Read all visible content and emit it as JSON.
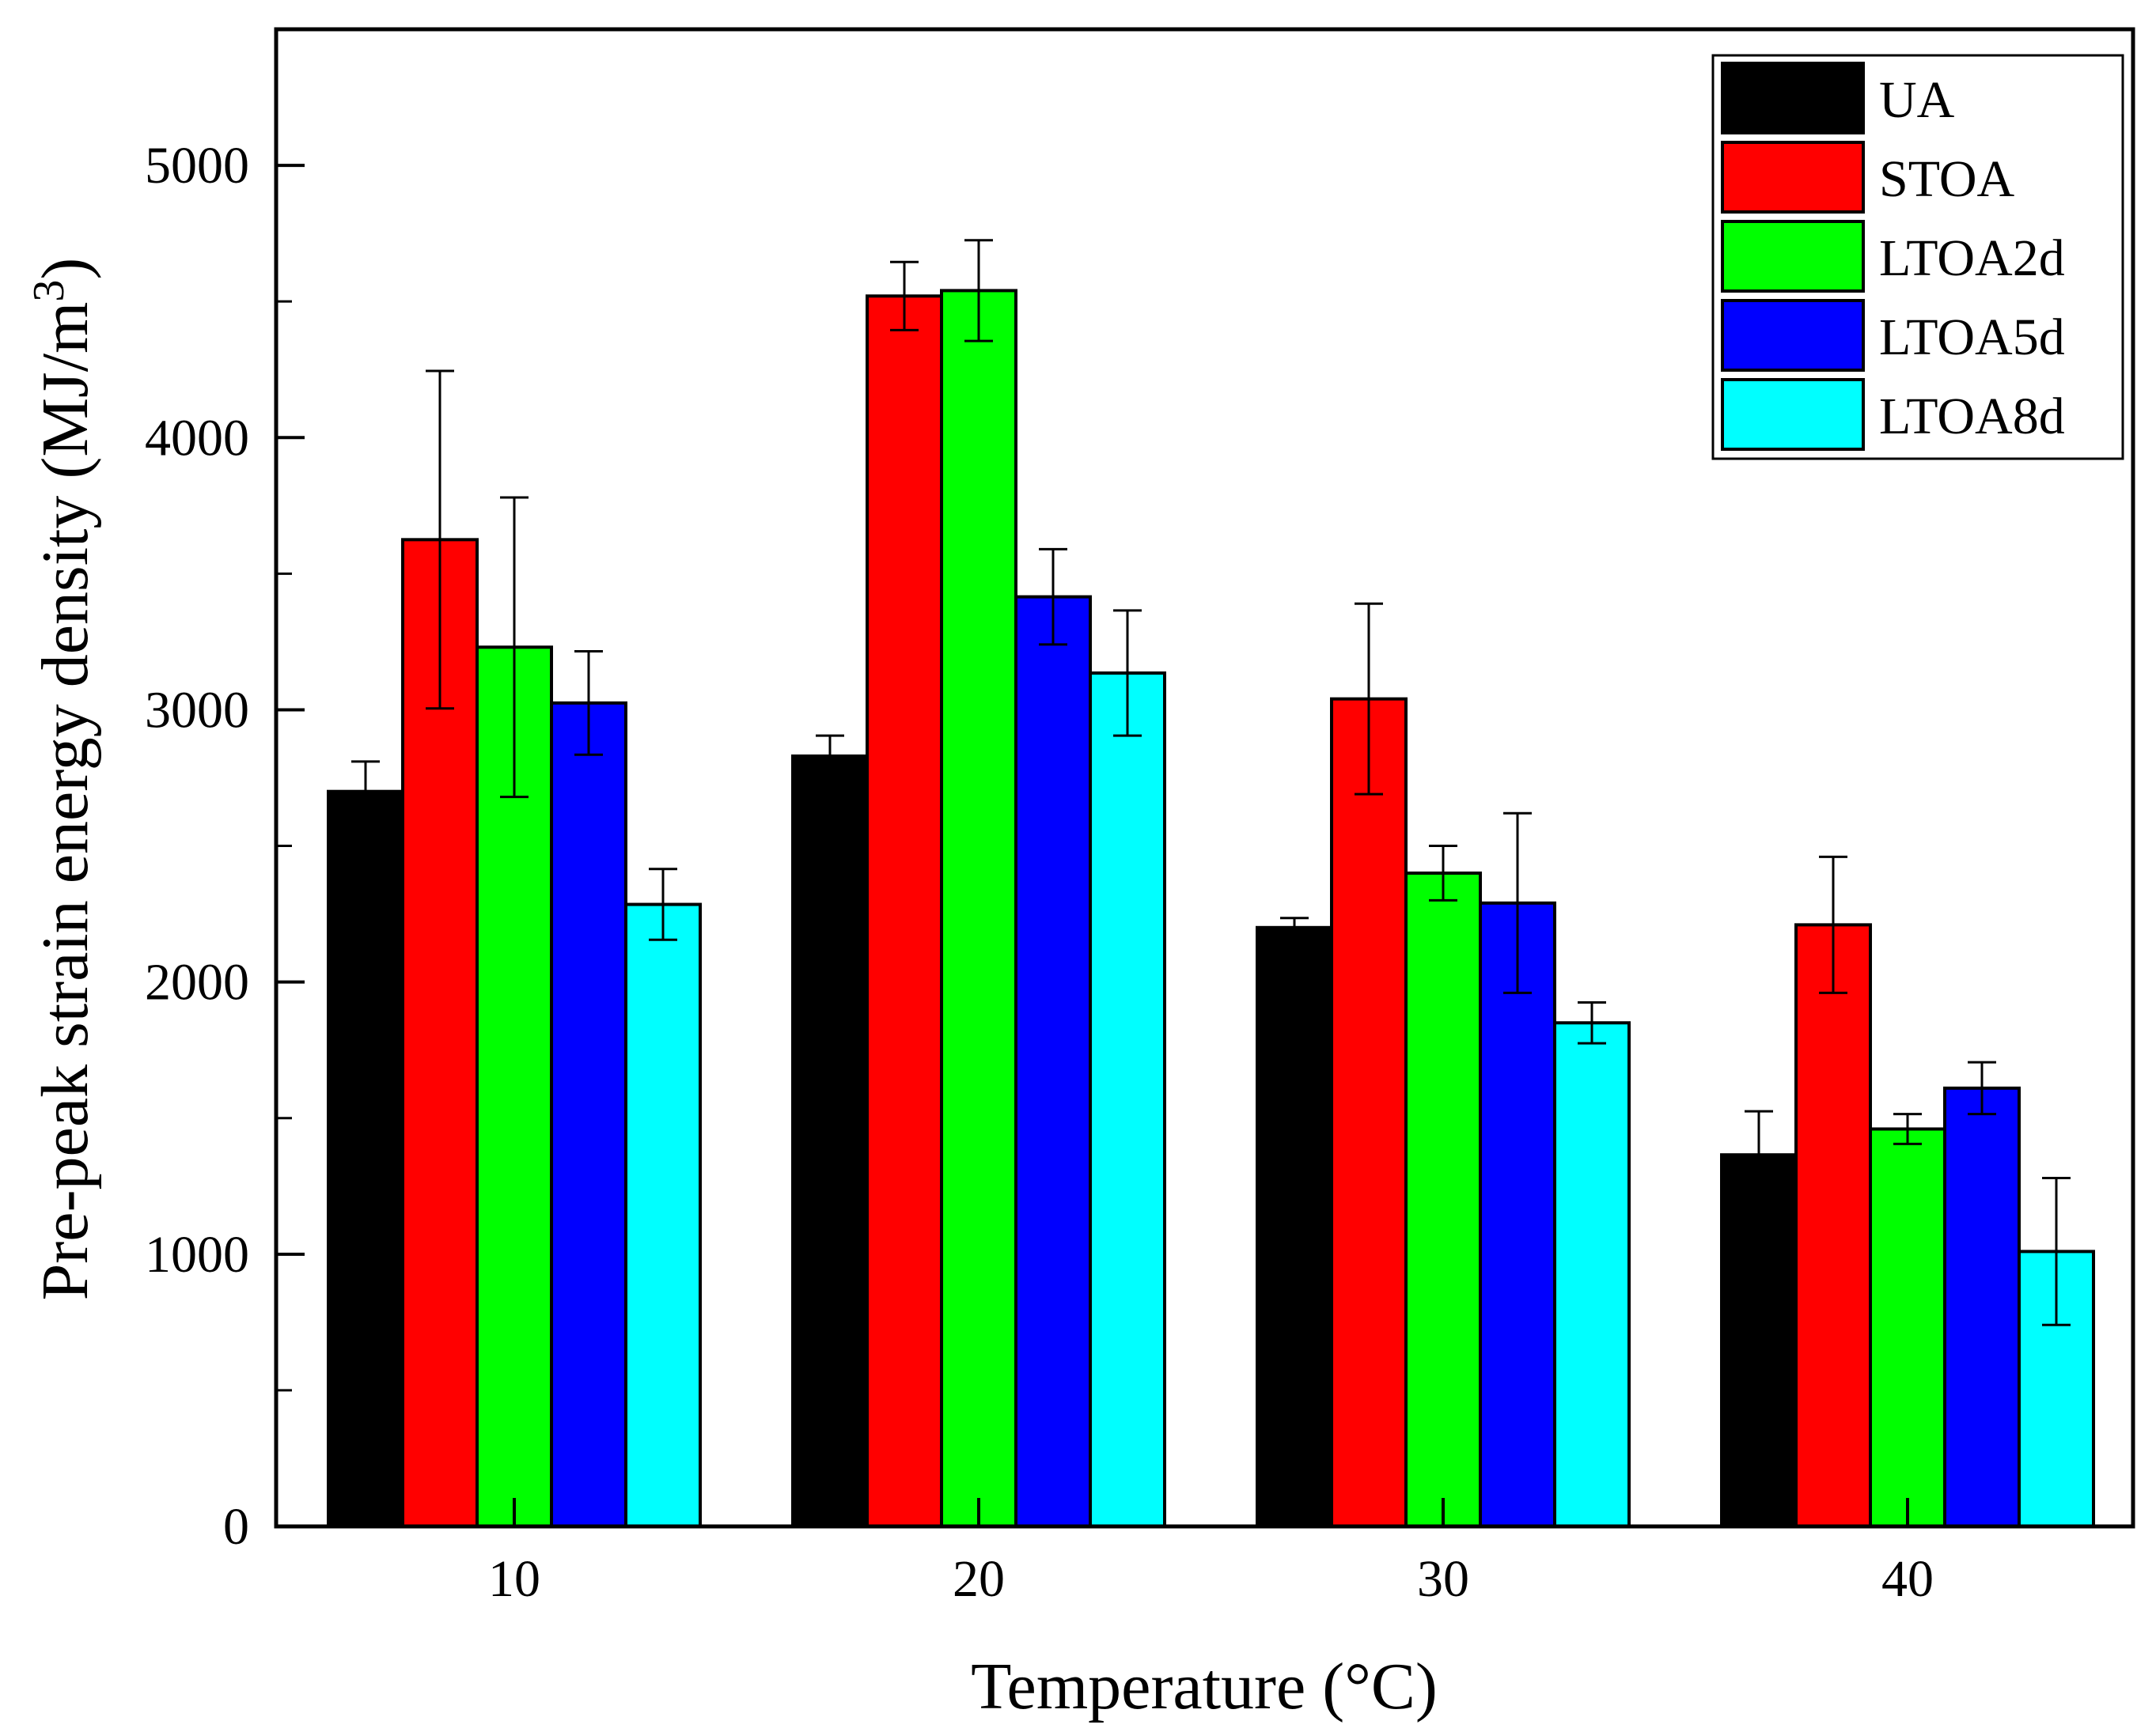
{
  "chart_data": {
    "type": "bar",
    "title": "",
    "xlabel": "Temperature (°C)",
    "ylabel": "Pre-peak strain energy density (MJ/m",
    "ylabel_sup": "3",
    "ylabel_close": ")",
    "categories": [
      "10",
      "20",
      "30",
      "40"
    ],
    "ylim": [
      0,
      5500
    ],
    "yticks": [
      0,
      1000,
      2000,
      3000,
      4000,
      5000
    ],
    "legend_position": "top-right",
    "series": [
      {
        "name": "UA",
        "color": "#000000",
        "values": [
          2700,
          2830,
          2200,
          1365
        ],
        "errors": [
          110,
          75,
          35,
          160
        ]
      },
      {
        "name": "STOA",
        "color": "#ff0000",
        "values": [
          3625,
          4520,
          3040,
          2210
        ],
        "errors": [
          620,
          125,
          350,
          250
        ]
      },
      {
        "name": "LTOA2d",
        "color": "#00ff00",
        "values": [
          3230,
          4540,
          2400,
          1460
        ],
        "errors": [
          550,
          185,
          100,
          55
        ]
      },
      {
        "name": "LTOA5d",
        "color": "#0000ff",
        "values": [
          3025,
          3415,
          2290,
          1610
        ],
        "errors": [
          190,
          175,
          330,
          95
        ]
      },
      {
        "name": "LTOA8d",
        "color": "#00ffff",
        "values": [
          2285,
          3135,
          1850,
          1010
        ],
        "errors": [
          130,
          230,
          75,
          270
        ]
      }
    ]
  }
}
